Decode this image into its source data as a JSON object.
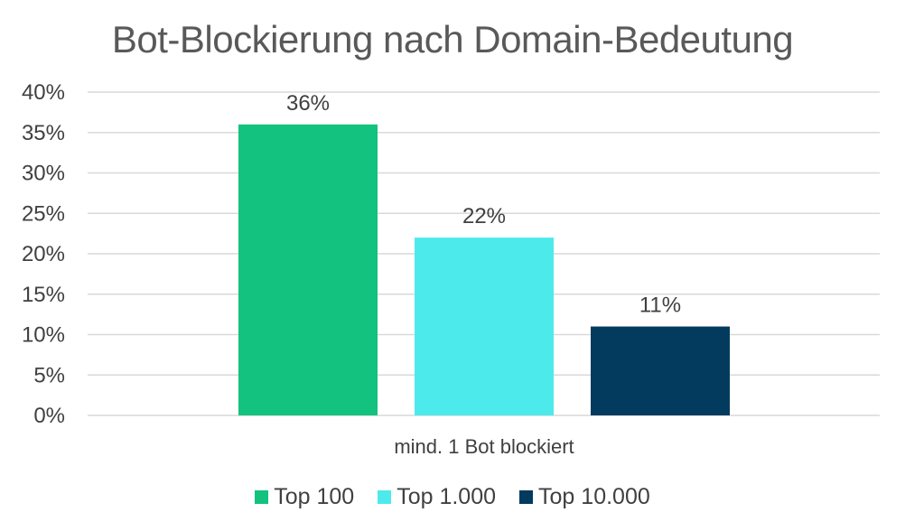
{
  "chart_data": {
    "type": "bar",
    "title": "Bot-Blockierung nach Domain-Bedeutung",
    "categories": [
      "mind. 1 Bot blockiert"
    ],
    "series": [
      {
        "name": "Top 100",
        "values": [
          36
        ],
        "color": "#12C27E",
        "label": "36%"
      },
      {
        "name": "Top 1.000",
        "values": [
          22
        ],
        "color": "#4DEAEB",
        "label": "22%"
      },
      {
        "name": "Top 10.000",
        "values": [
          11
        ],
        "color": "#023B5E",
        "label": "11%"
      }
    ],
    "y_ticks": [
      "0%",
      "5%",
      "10%",
      "15%",
      "20%",
      "25%",
      "30%",
      "35%",
      "40%"
    ],
    "ylim": [
      0,
      40
    ],
    "grid": true,
    "legend_position": "bottom"
  }
}
